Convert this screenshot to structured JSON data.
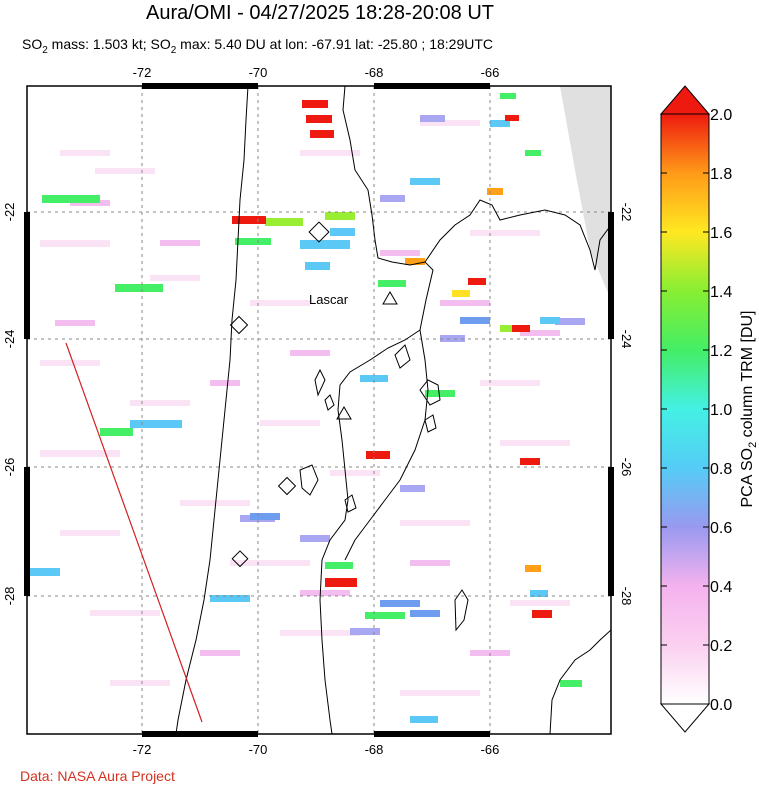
{
  "title": "Aura/OMI - 04/27/2025 18:28-20:08 UT",
  "subtitle": {
    "prefix": "SO",
    "sub1": "2",
    "mass_text": " mass: 1.503 kt; SO",
    "sub2": "2",
    "rest_text": " max: 5.40 DU at lon: -67.91 lat: -25.80 ; 18:29UTC"
  },
  "credit": "Data: NASA Aura Project",
  "map": {
    "lon_ticks": [
      "-72",
      "-70",
      "-68",
      "-66"
    ],
    "lat_ticks": [
      "-22",
      "-24",
      "-26",
      "-28"
    ],
    "volcano_label": "Lascar",
    "colors": {
      "land": "#ffffff",
      "grid": "#888888",
      "coast": "#000000",
      "swath_edge": "#d22020",
      "no_data": "#e0e0e0"
    }
  },
  "colorbar": {
    "label_prefix": "PCA SO",
    "label_sub": "2",
    "label_suffix": " column TRM [DU]",
    "ticks": [
      "2.0",
      "1.8",
      "1.6",
      "1.4",
      "1.2",
      "1.0",
      "0.8",
      "0.6",
      "0.4",
      "0.2",
      "0.0"
    ],
    "range": [
      0.0,
      2.0
    ]
  }
}
